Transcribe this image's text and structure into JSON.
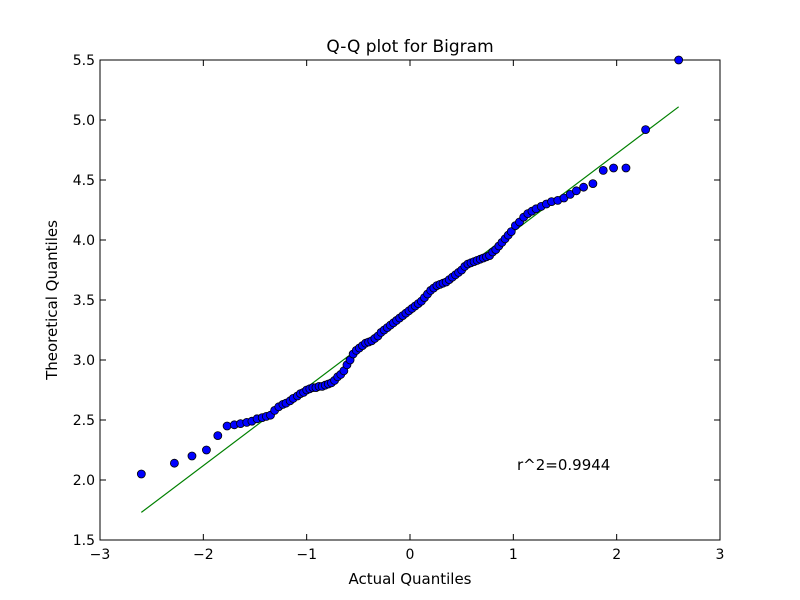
{
  "chart_data": {
    "type": "scatter",
    "title": "Q-Q plot for Bigram",
    "xlabel": "Actual Quantiles",
    "ylabel": "Theoretical Quantiles",
    "xlim": [
      -3,
      3
    ],
    "ylim": [
      1.5,
      5.5
    ],
    "xticks": [
      -3,
      -2,
      -1,
      0,
      1,
      2,
      3
    ],
    "xtick_labels": [
      "−3",
      "−2",
      "−1",
      "0",
      "1",
      "2",
      "3"
    ],
    "yticks": [
      1.5,
      2.0,
      2.5,
      3.0,
      3.5,
      4.0,
      4.5,
      5.0,
      5.5
    ],
    "ytick_labels": [
      "1.5",
      "2.0",
      "2.5",
      "3.0",
      "3.5",
      "4.0",
      "4.5",
      "5.0",
      "5.5"
    ],
    "grid": false,
    "annotation": "r^2=0.9944",
    "points_color": "#0000ff",
    "points_edge_color": "#000000",
    "fit_color": "#008000",
    "fit_line": {
      "x": [
        -2.6,
        2.6
      ],
      "y": [
        1.73,
        5.11
      ]
    },
    "points": [
      [
        -2.6,
        2.05
      ],
      [
        -2.28,
        2.14
      ],
      [
        -2.11,
        2.2
      ],
      [
        -1.97,
        2.25
      ],
      [
        -1.86,
        2.37
      ],
      [
        -1.77,
        2.45
      ],
      [
        -1.7,
        2.46
      ],
      [
        -1.64,
        2.47
      ],
      [
        -1.58,
        2.48
      ],
      [
        -1.53,
        2.49
      ],
      [
        -1.48,
        2.51
      ],
      [
        -1.43,
        2.52
      ],
      [
        -1.39,
        2.53
      ],
      [
        -1.35,
        2.54
      ],
      [
        -1.31,
        2.58
      ],
      [
        -1.27,
        2.61
      ],
      [
        -1.23,
        2.63
      ],
      [
        -1.2,
        2.64
      ],
      [
        -1.16,
        2.66
      ],
      [
        -1.13,
        2.68
      ],
      [
        -1.09,
        2.7
      ],
      [
        -1.06,
        2.72
      ],
      [
        -1.03,
        2.73
      ],
      [
        -1.0,
        2.75
      ],
      [
        -0.97,
        2.76
      ],
      [
        -0.94,
        2.77
      ],
      [
        -0.91,
        2.77
      ],
      [
        -0.88,
        2.78
      ],
      [
        -0.85,
        2.78
      ],
      [
        -0.82,
        2.79
      ],
      [
        -0.79,
        2.8
      ],
      [
        -0.76,
        2.81
      ],
      [
        -0.73,
        2.83
      ],
      [
        -0.7,
        2.86
      ],
      [
        -0.67,
        2.88
      ],
      [
        -0.64,
        2.91
      ],
      [
        -0.61,
        2.96
      ],
      [
        -0.58,
        3.0
      ],
      [
        -0.55,
        3.05
      ],
      [
        -0.52,
        3.08
      ],
      [
        -0.49,
        3.1
      ],
      [
        -0.46,
        3.12
      ],
      [
        -0.43,
        3.14
      ],
      [
        -0.4,
        3.15
      ],
      [
        -0.37,
        3.16
      ],
      [
        -0.34,
        3.18
      ],
      [
        -0.31,
        3.2
      ],
      [
        -0.28,
        3.23
      ],
      [
        -0.25,
        3.25
      ],
      [
        -0.22,
        3.27
      ],
      [
        -0.19,
        3.29
      ],
      [
        -0.16,
        3.31
      ],
      [
        -0.13,
        3.33
      ],
      [
        -0.1,
        3.35
      ],
      [
        -0.07,
        3.37
      ],
      [
        -0.04,
        3.39
      ],
      [
        -0.01,
        3.41
      ],
      [
        0.02,
        3.43
      ],
      [
        0.05,
        3.45
      ],
      [
        0.08,
        3.47
      ],
      [
        0.11,
        3.49
      ],
      [
        0.14,
        3.52
      ],
      [
        0.17,
        3.55
      ],
      [
        0.2,
        3.58
      ],
      [
        0.23,
        3.6
      ],
      [
        0.26,
        3.62
      ],
      [
        0.29,
        3.63
      ],
      [
        0.32,
        3.64
      ],
      [
        0.35,
        3.65
      ],
      [
        0.38,
        3.67
      ],
      [
        0.41,
        3.69
      ],
      [
        0.44,
        3.71
      ],
      [
        0.47,
        3.73
      ],
      [
        0.5,
        3.75
      ],
      [
        0.53,
        3.78
      ],
      [
        0.56,
        3.8
      ],
      [
        0.59,
        3.81
      ],
      [
        0.62,
        3.82
      ],
      [
        0.65,
        3.83
      ],
      [
        0.68,
        3.84
      ],
      [
        0.71,
        3.85
      ],
      [
        0.74,
        3.86
      ],
      [
        0.77,
        3.87
      ],
      [
        0.8,
        3.9
      ],
      [
        0.83,
        3.92
      ],
      [
        0.86,
        3.95
      ],
      [
        0.89,
        3.98
      ],
      [
        0.92,
        4.01
      ],
      [
        0.95,
        4.04
      ],
      [
        0.98,
        4.07
      ],
      [
        1.02,
        4.12
      ],
      [
        1.06,
        4.15
      ],
      [
        1.1,
        4.19
      ],
      [
        1.14,
        4.22
      ],
      [
        1.18,
        4.24
      ],
      [
        1.22,
        4.26
      ],
      [
        1.27,
        4.28
      ],
      [
        1.32,
        4.3
      ],
      [
        1.37,
        4.32
      ],
      [
        1.43,
        4.33
      ],
      [
        1.49,
        4.35
      ],
      [
        1.55,
        4.38
      ],
      [
        1.61,
        4.41
      ],
      [
        1.68,
        4.44
      ],
      [
        1.77,
        4.47
      ],
      [
        1.87,
        4.58
      ],
      [
        1.97,
        4.6
      ],
      [
        2.09,
        4.6
      ],
      [
        2.28,
        4.92
      ],
      [
        2.6,
        5.5
      ]
    ]
  }
}
